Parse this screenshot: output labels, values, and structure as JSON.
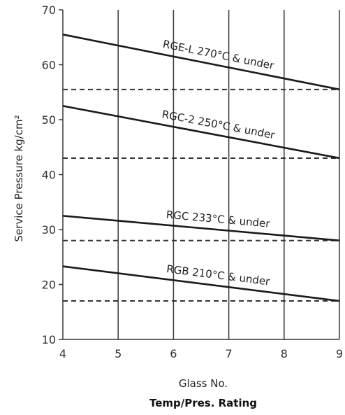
{
  "chart_data": {
    "type": "line",
    "title": "",
    "xlabel": "Glass No.",
    "xlabel2": "Temp/Pres. Rating",
    "ylabel": "Service Pressure kg/cm²",
    "x": [
      4,
      5,
      6,
      7,
      8,
      9
    ],
    "xlim": [
      4,
      9
    ],
    "ylim": [
      10,
      70
    ],
    "x_ticks": [
      "4",
      "5",
      "6",
      "7",
      "8",
      "9"
    ],
    "y_ticks": [
      "10",
      "20",
      "30",
      "40",
      "50",
      "60",
      "70"
    ],
    "grid": "vertical",
    "series": [
      {
        "name": "RGE-L 270°C & under",
        "label": "RGE-L 270°C & under",
        "start": 65.5,
        "end": 55.5,
        "dashed": 55.5
      },
      {
        "name": "RGC-2 250°C & under",
        "label": "RGC-2 250°C & under",
        "start": 52.5,
        "end": 43.0,
        "dashed": 43.0
      },
      {
        "name": "RGC 233°C & under",
        "label": "RGC 233°C & under",
        "start": 32.5,
        "end": 28.0,
        "dashed": 28.0
      },
      {
        "name": "RGB 210°C & under",
        "label": "RGB 210°C & under",
        "start": 23.3,
        "end": 17.0,
        "dashed": 17.0
      }
    ]
  }
}
